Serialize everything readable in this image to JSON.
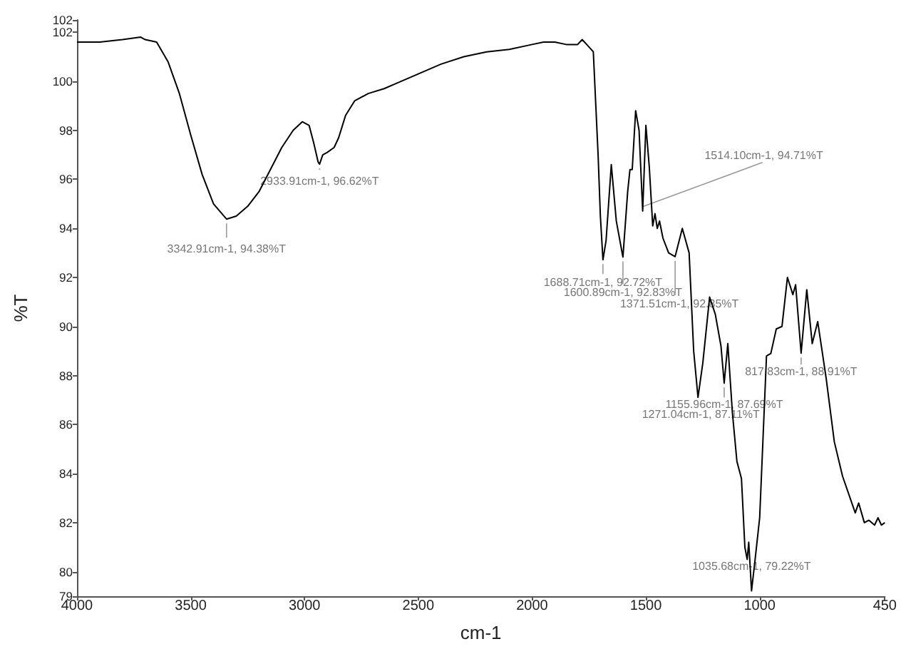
{
  "chart_data": {
    "type": "line",
    "xlabel": "cm-1",
    "ylabel": "%T",
    "xlim": [
      4000,
      450
    ],
    "xticks": [
      4000,
      3500,
      3000,
      2500,
      2000,
      1500,
      1000,
      450
    ],
    "ylim": [
      79,
      102.5
    ],
    "yticks": [
      79,
      80,
      82,
      84,
      86,
      88,
      90,
      92,
      94,
      96,
      98,
      100,
      102,
      {
        "value": 102.5,
        "label": "102"
      }
    ],
    "grid": false,
    "marker": "none",
    "line_style": "solid",
    "series": [
      {
        "color": "#000000",
        "x": [
          4000,
          3900,
          3800,
          3720,
          3700,
          3650,
          3600,
          3550,
          3500,
          3450,
          3400,
          3342.91,
          3300,
          3250,
          3200,
          3150,
          3100,
          3050,
          3010,
          2980,
          2960,
          2940,
          2933.91,
          2920,
          2900,
          2870,
          2850,
          2820,
          2780,
          2720,
          2650,
          2600,
          2500,
          2400,
          2300,
          2200,
          2100,
          2000,
          1950,
          1900,
          1850,
          1800,
          1780,
          1760,
          1731,
          1710,
          1700,
          1688.71,
          1675,
          1652,
          1630,
          1600.89,
          1580,
          1570,
          1560,
          1545,
          1530,
          1514.1,
          1500,
          1485,
          1470,
          1460,
          1450,
          1440,
          1425,
          1400,
          1371.51,
          1340,
          1310,
          1290,
          1271.04,
          1250,
          1220,
          1195,
          1170,
          1155.96,
          1140,
          1120,
          1100,
          1080,
          1065,
          1055,
          1048,
          1035.68,
          1020,
          1000,
          985,
          970,
          951,
          927,
          902,
          878,
          854,
          842,
          817.83,
          793,
          769,
          745,
          708,
          672,
          636,
          580,
          565,
          540,
          520,
          495,
          480,
          465,
          450
        ],
        "values": [
          101.6,
          101.6,
          101.7,
          101.8,
          101.7,
          101.6,
          100.8,
          99.5,
          97.8,
          96.2,
          95.0,
          94.38,
          94.5,
          94.9,
          95.5,
          96.4,
          97.3,
          98.0,
          98.35,
          98.2,
          97.5,
          96.7,
          96.62,
          97.0,
          97.1,
          97.3,
          97.7,
          98.6,
          99.2,
          99.5,
          99.7,
          99.9,
          100.3,
          100.7,
          101.0,
          101.2,
          101.3,
          101.5,
          101.6,
          101.6,
          101.5,
          101.5,
          101.7,
          101.5,
          101.2,
          97.0,
          94.5,
          92.72,
          93.5,
          96.6,
          94.3,
          92.83,
          95.5,
          96.4,
          96.4,
          98.8,
          98.0,
          94.71,
          98.2,
          96.5,
          94.1,
          94.6,
          94.0,
          94.3,
          93.6,
          93.0,
          92.85,
          94.0,
          93.0,
          89.0,
          87.11,
          88.5,
          91.2,
          90.5,
          89.2,
          87.69,
          89.3,
          86.5,
          84.5,
          83.8,
          81.0,
          80.5,
          81.2,
          79.22,
          80.5,
          82.2,
          85.5,
          88.8,
          88.9,
          89.9,
          90.0,
          92.0,
          91.3,
          91.7,
          88.91,
          91.5,
          89.3,
          90.2,
          87.9,
          85.3,
          83.9,
          82.4,
          82.8,
          82.0,
          82.1,
          81.9,
          82.2,
          81.9,
          82.0
        ]
      }
    ],
    "annotations": [
      {
        "text": "3342.91cm-1, 94.38%T",
        "x": 3342.91,
        "y": 94.38
      },
      {
        "text": "2933.91cm-1, 96.62%T",
        "x": 2933.91,
        "y": 96.62
      },
      {
        "text": "1514.10cm-1, 94.71%T",
        "x": 1514.1,
        "y": 94.71
      },
      {
        "text": "1688.71cm-1, 92.72%T",
        "x": 1688.71,
        "y": 92.72
      },
      {
        "text": "1600.89cm-1, 92.83%T",
        "x": 1600.89,
        "y": 92.83
      },
      {
        "text": "1371.51cm-1, 92.85%T",
        "x": 1371.51,
        "y": 92.85
      },
      {
        "text": "1155.96cm-1, 87.69%T",
        "x": 1155.96,
        "y": 87.69
      },
      {
        "text": "1271.04cm-1, 87.11%T",
        "x": 1271.04,
        "y": 87.11
      },
      {
        "text": "817.83cm-1, 88.91%T",
        "x": 817.83,
        "y": 88.91
      },
      {
        "text": "1035.68cm-1, 79.22%T",
        "x": 1035.68,
        "y": 79.22
      }
    ]
  }
}
